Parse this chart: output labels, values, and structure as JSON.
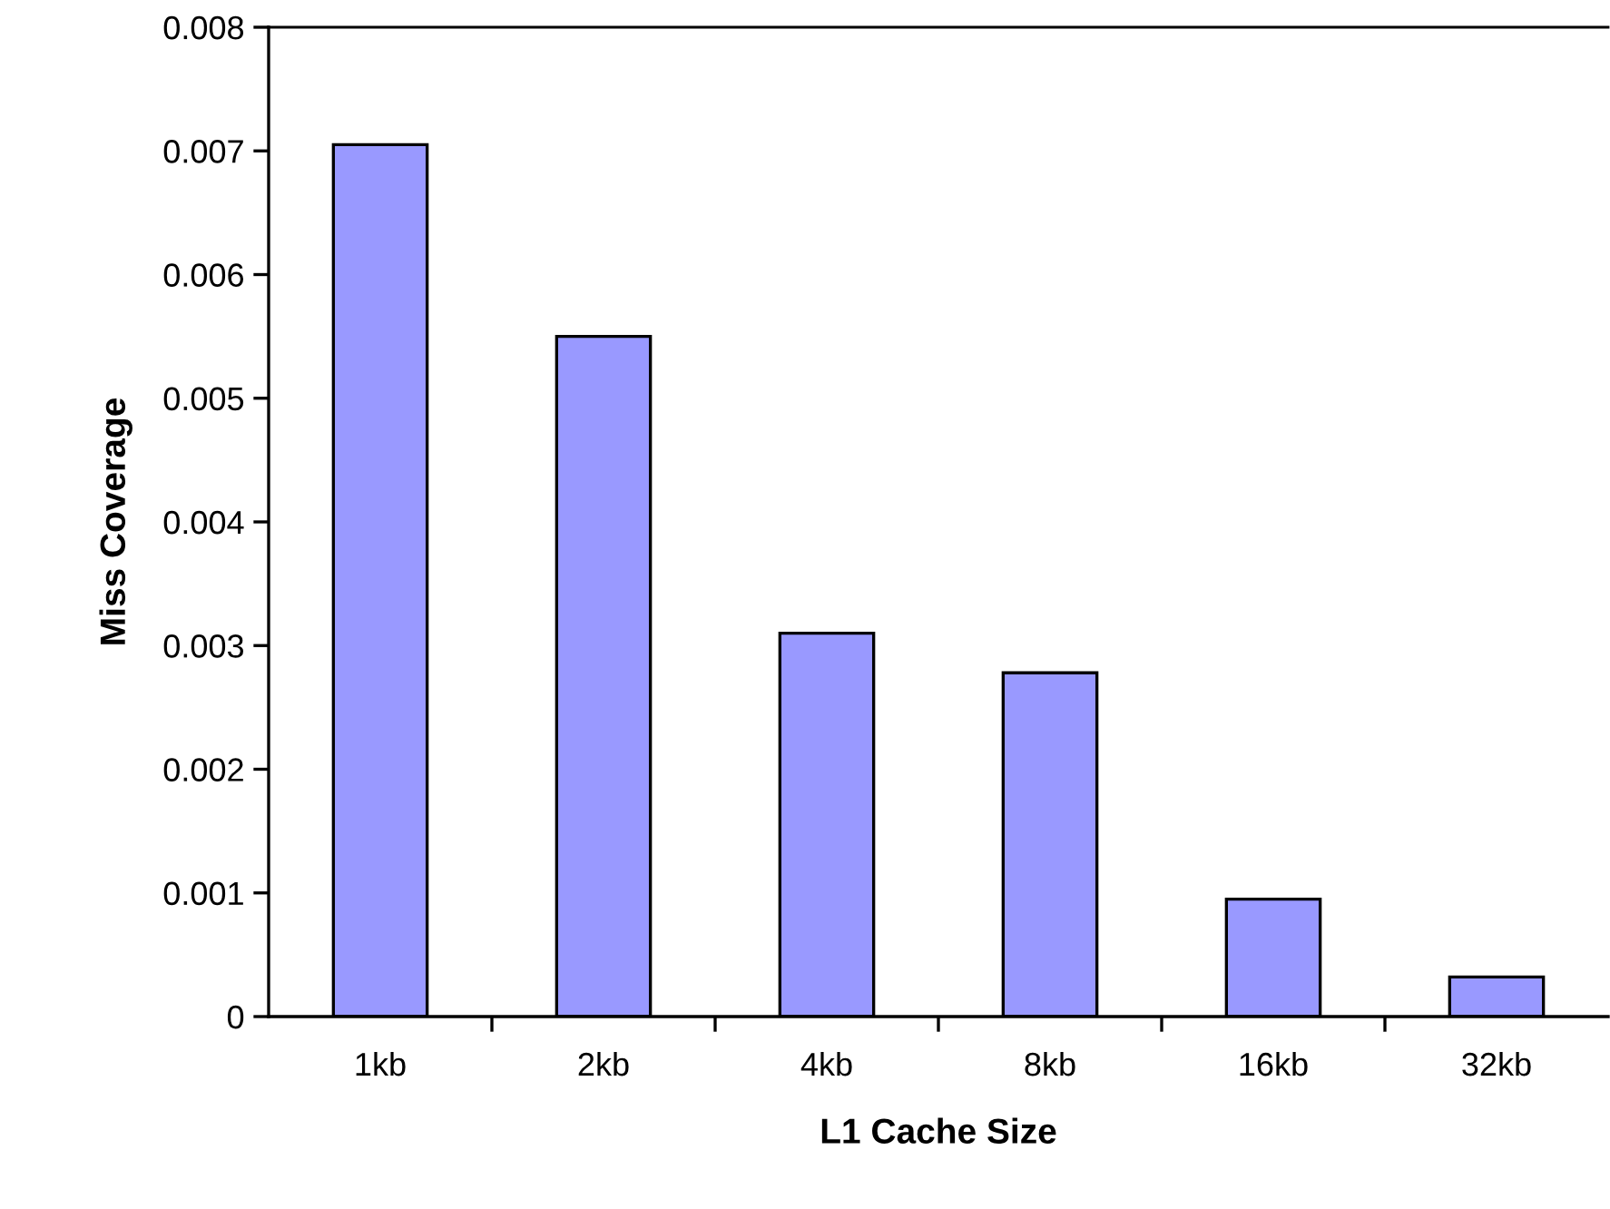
{
  "chart_data": {
    "type": "bar",
    "xlabel": "L1 Cache Size",
    "ylabel": "Miss Coverage",
    "categories": [
      "1kb",
      "2kb",
      "4kb",
      "8kb",
      "16kb",
      "32kb"
    ],
    "values": [
      0.00705,
      0.0055,
      0.0031,
      0.00278,
      0.00095,
      0.00032
    ],
    "color": "#9999ff",
    "ylim": [
      0,
      0.008
    ],
    "yticks": [
      {
        "value": 0,
        "label": "0"
      },
      0.001,
      0.002,
      0.003,
      0.004,
      0.005,
      0.006,
      0.007,
      0.008
    ],
    "grid": false,
    "legend": false
  }
}
